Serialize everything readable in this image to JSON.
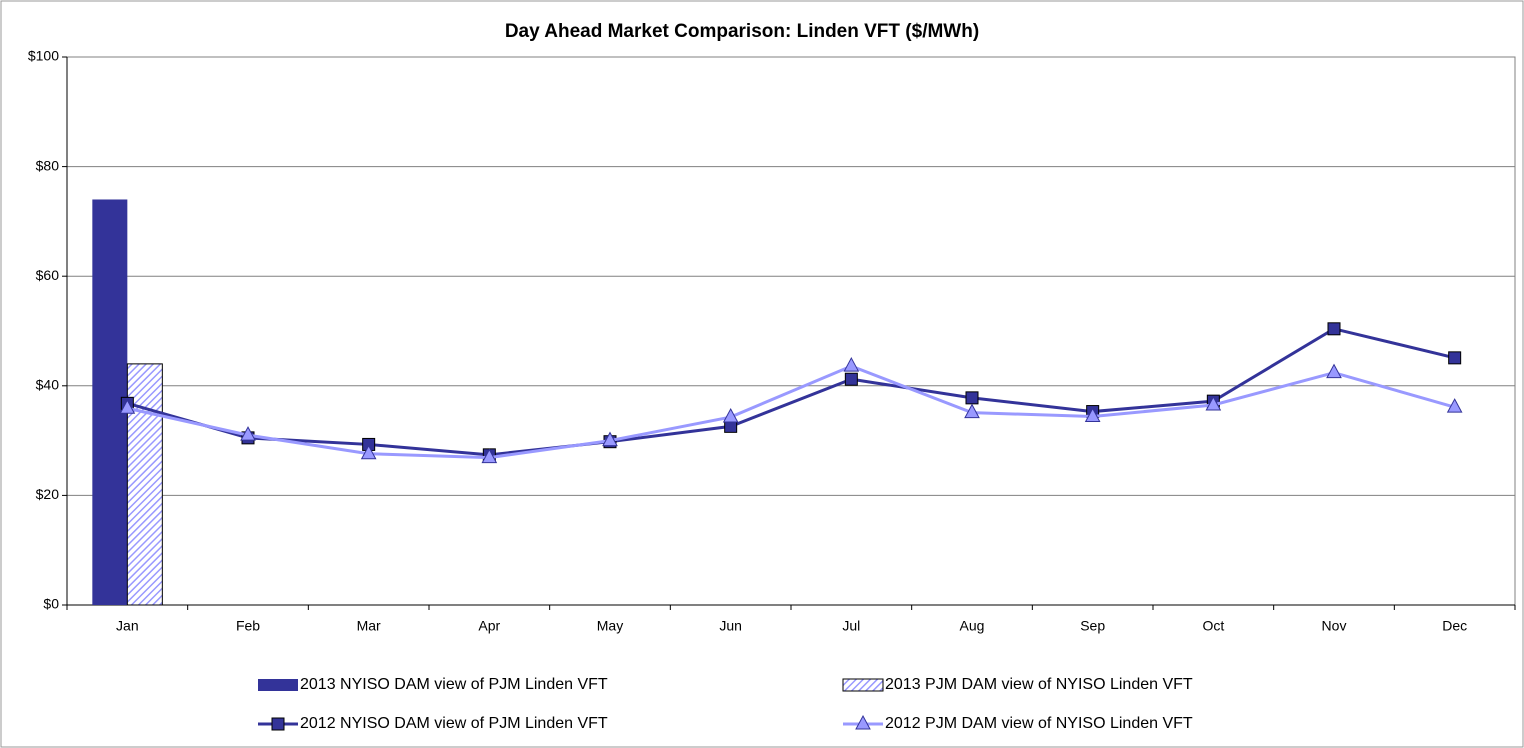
{
  "chart_data": {
    "type": "combo",
    "title": "Day Ahead Market Comparison: Linden VFT ($/MWh)",
    "categories": [
      "Jan",
      "Feb",
      "Mar",
      "Apr",
      "May",
      "Jun",
      "Jul",
      "Aug",
      "Sep",
      "Oct",
      "Nov",
      "Dec"
    ],
    "series": [
      {
        "name": "2013 NYISO DAM view of PJM Linden VFT",
        "type": "bar",
        "color": "#333399",
        "pattern": "solid",
        "values": [
          74,
          null,
          null,
          null,
          null,
          null,
          null,
          null,
          null,
          null,
          null,
          null
        ]
      },
      {
        "name": "2013 PJM DAM view of NYISO Linden VFT",
        "type": "bar",
        "color": "#9999ff",
        "pattern": "hatch",
        "values": [
          44,
          null,
          null,
          null,
          null,
          null,
          null,
          null,
          null,
          null,
          null,
          null
        ]
      },
      {
        "name": "2012 NYISO DAM view of PJM Linden VFT",
        "type": "line",
        "color": "#333399",
        "marker": "square",
        "values": [
          36.8,
          30.5,
          29.3,
          27.4,
          29.8,
          32.6,
          41.2,
          37.8,
          35.3,
          37.2,
          50.4,
          45.1
        ]
      },
      {
        "name": "2012 PJM DAM view of NYISO Linden VFT",
        "type": "line",
        "color": "#9999ff",
        "marker": "triangle",
        "values": [
          35.9,
          31.0,
          27.6,
          26.9,
          30.0,
          34.3,
          43.6,
          35.1,
          34.4,
          36.5,
          42.4,
          36.1
        ]
      }
    ],
    "ylim": [
      0,
      100
    ],
    "yticks": [
      {
        "value": 0,
        "label": "$0"
      },
      {
        "value": 20,
        "label": "$20"
      },
      {
        "value": 40,
        "label": "$40"
      },
      {
        "value": 60,
        "label": "$60"
      },
      {
        "value": 80,
        "label": "$80"
      },
      {
        "value": 100,
        "label": "$100"
      }
    ],
    "grid": true,
    "legend": "bottom"
  }
}
